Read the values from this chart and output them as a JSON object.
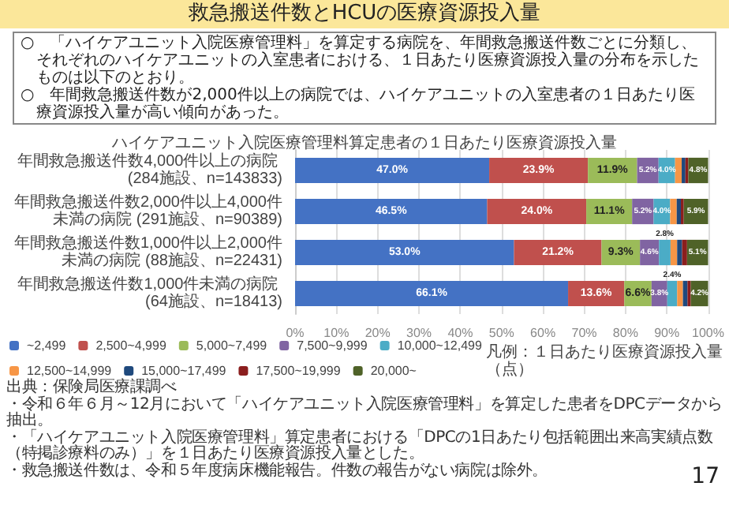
{
  "chart_data": {
    "type": "bar",
    "orientation": "horizontal",
    "stacked": true,
    "title": "救急搬送件数とHCUの医療資源投入量",
    "subtitle": "ハイケアユニット入院医療管理料算定患者の１日あたり医療資源投入量",
    "categories": [
      "年間救急搬送件数4,000件以上の病院 (284施設、n=143833)",
      "年間救急搬送件数2,000件以上4,000件未満の病院 (291施設、n=90389)",
      "年間救急搬送件数1,000件以上2,000件未満の病院 (88施設、n=22431)",
      "年間救急搬送件数1,000件未満の病院 (64施設、n=18413)"
    ],
    "series": [
      {
        "name": "~2,499",
        "color": "#4472c4",
        "values": [
          47.0,
          46.5,
          53.0,
          66.1
        ],
        "value_labels": [
          "47.0%",
          "46.5%",
          "53.0%",
          "66.1%"
        ]
      },
      {
        "name": "2,500~4,999",
        "color": "#c0504d",
        "values": [
          23.9,
          24.0,
          21.2,
          13.6
        ],
        "value_labels": [
          "23.9%",
          "24.0%",
          "21.2%",
          "13.6%"
        ]
      },
      {
        "name": "5,000~7,499",
        "color": "#9bbb59",
        "values": [
          11.9,
          11.1,
          9.3,
          6.6
        ],
        "value_labels": [
          "11.9%",
          "11.1%",
          "9.3%",
          "6.6%"
        ]
      },
      {
        "name": "7,500~9,999",
        "color": "#8064a2",
        "values": [
          5.2,
          5.2,
          4.6,
          3.8
        ],
        "value_labels": [
          "5.2%",
          "5.2%",
          "4.6%",
          "3.8%"
        ]
      },
      {
        "name": "10,000~12,499",
        "color": "#4bacc6",
        "values": [
          4.0,
          4.0,
          2.8,
          2.4
        ],
        "value_labels": [
          "4.0%",
          "4.0%",
          "2.8%",
          "2.4%"
        ]
      },
      {
        "name": "12,500~14,999",
        "color": "#f79646",
        "values": [
          1.6,
          1.6,
          1.6,
          1.4
        ],
        "value_labels": [
          null,
          null,
          null,
          null
        ]
      },
      {
        "name": "15,000~17,499",
        "color": "#1f497d",
        "values": [
          0.9,
          1.0,
          1.2,
          1.1
        ],
        "value_labels": [
          null,
          null,
          null,
          null
        ]
      },
      {
        "name": "17,500~19,999",
        "color": "#8b1e1e",
        "values": [
          0.7,
          0.7,
          1.2,
          0.8
        ],
        "value_labels": [
          null,
          null,
          null,
          null
        ]
      },
      {
        "name": "20,000~",
        "color": "#4f6228",
        "values": [
          4.8,
          5.9,
          5.1,
          4.2
        ],
        "value_labels": [
          "4.8%",
          "5.9%",
          "5.1%",
          "4.2%"
        ]
      }
    ],
    "xlim": [
      0,
      100
    ],
    "xticks": [
      {
        "value": 0,
        "label": "0%"
      },
      {
        "value": 10,
        "label": "10%"
      },
      {
        "value": 20,
        "label": "20%"
      },
      {
        "value": 30,
        "label": "30%"
      },
      {
        "value": 40,
        "label": "40%"
      },
      {
        "value": 50,
        "label": "50%"
      },
      {
        "value": 60,
        "label": "60%"
      },
      {
        "value": 70,
        "label": "70%"
      },
      {
        "value": 80,
        "label": "80%"
      },
      {
        "value": 90,
        "label": "90%"
      },
      {
        "value": 100,
        "label": "100%"
      }
    ],
    "grid": "x",
    "legend": "bottom",
    "legend_title": "凡例：１日あたり医療資源投入量（点）",
    "annotations": [
      "○　「ハイケアユニット入院医療管理料」を算定する病院を、年間救急搬送件数ごとに分類し、それぞれのハイケアユニットの入室患者における、１日あたり医療資源投入量の分布を示したものは以下のとおり。",
      "○　年間救急搬送件数が2,000件以上の病院では、ハイケアユニットの入室患者の１日あたり医療資源投入量が高い傾向があった。",
      "出典：保険局医療課調べ",
      "・令和６年６月～12月において「ハイケアユニット入院医療管理料」を算定した患者をDPCデータから抽出。",
      "・「ハイケアユニット入院医療管理料」算定患者における「DPCの1日あたり包括範囲出来高実績点数（特掲診療料のみ）」を１日あたり医療資源投入量とした。",
      "・救急搬送件数は、令和５年度病床機能報告。件数の報告がない病院は除外。",
      "17"
    ]
  }
}
